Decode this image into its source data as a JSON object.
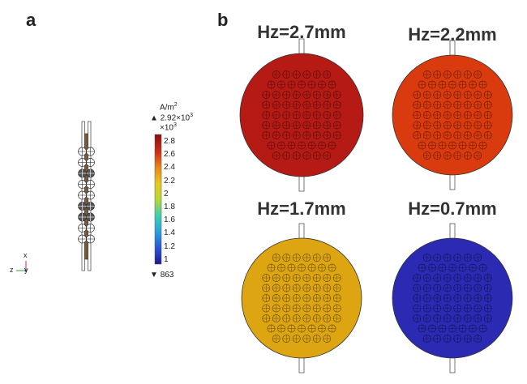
{
  "panels": {
    "a": {
      "label": "a"
    },
    "b": {
      "label": "b"
    }
  },
  "colorbar": {
    "unit": "A/m",
    "unit_exp": "2",
    "max_text": "2.92×10",
    "max_exp": "3",
    "scale_text": "×10",
    "scale_exp": "3",
    "ticks": [
      "2.8",
      "2.6",
      "2.4",
      "2.2",
      "2",
      "1.8",
      "1.6",
      "1.4",
      "1.2",
      "1"
    ],
    "min_text": "863",
    "up_arrow": "▲",
    "down_arrow": "▼"
  },
  "axes_triad": {
    "x": "x",
    "z": "z",
    "y": "y"
  },
  "discs": [
    {
      "title": "Hz=2.7mm",
      "color": "#b61a14"
    },
    {
      "title": "Hz=2.2mm",
      "color": "#d93a0e"
    },
    {
      "title": "Hz=1.7mm",
      "color": "#dca511"
    },
    {
      "title": "Hz=0.7mm",
      "color": "#2a2ab3"
    }
  ]
}
